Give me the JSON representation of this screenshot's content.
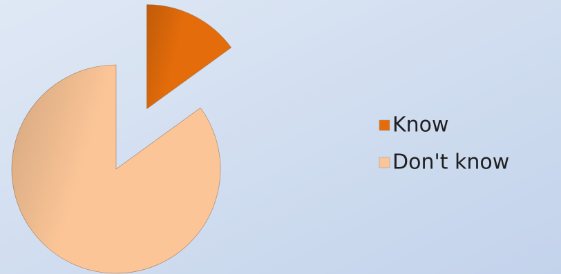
{
  "chart_data": {
    "type": "pie",
    "categories": [
      "Know",
      "Don't know"
    ],
    "values": [
      15,
      85
    ],
    "colors": [
      "#e46c0a",
      "#fbc597"
    ],
    "legend": "right"
  }
}
